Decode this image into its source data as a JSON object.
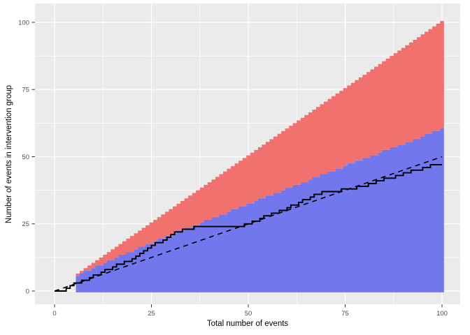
{
  "figure": {
    "background": "#ffffff",
    "panel_background": "#ebebeb",
    "grid_major_color": "#ffffff",
    "grid_minor_color": "#ffffff",
    "tick_color": "#333333",
    "tick_label_color": "#4d4d4d",
    "axis_title_color": "#000000"
  },
  "chart_data": {
    "type": "area",
    "title": "",
    "xlabel": "Total number of events",
    "ylabel": "Number of events in intervention group",
    "x_range": [
      0,
      100
    ],
    "y_range": [
      0,
      100
    ],
    "x_ticks": [
      0,
      25,
      50,
      75,
      100
    ],
    "y_ticks": [
      0,
      25,
      50,
      75,
      100
    ],
    "x_minor_ticks": [
      12.5,
      37.5,
      62.5,
      87.5
    ],
    "y_minor_ticks": [
      12.5,
      37.5,
      62.5,
      87.5
    ],
    "grid": "on",
    "legend_position": "none",
    "regions": {
      "start_n": 6,
      "stop_region_color": "#f0716e",
      "continue_region_color": "#7277ed",
      "upper_edge_rule": "y equals n (all events in intervention group)",
      "lower_edge_of_blue": 0,
      "upper_boundary_k_from_n6_to_n100": [
        6,
        7,
        8,
        8,
        9,
        10,
        10,
        11,
        12,
        12,
        13,
        14,
        14,
        15,
        15,
        16,
        17,
        17,
        18,
        18,
        19,
        20,
        20,
        21,
        21,
        22,
        23,
        23,
        24,
        24,
        25,
        25,
        26,
        27,
        27,
        28,
        28,
        29,
        29,
        30,
        31,
        31,
        32,
        32,
        33,
        33,
        34,
        35,
        35,
        36,
        36,
        37,
        37,
        38,
        39,
        39,
        40,
        40,
        41,
        41,
        42,
        43,
        43,
        44,
        44,
        45,
        45,
        46,
        46,
        47,
        48,
        48,
        49,
        49,
        50,
        50,
        51,
        51,
        52,
        53,
        53,
        54,
        54,
        55,
        55,
        56,
        56,
        57,
        57,
        58,
        59,
        59,
        60,
        60,
        61
      ]
    },
    "reference_line": {
      "style": "dashed",
      "color": "#000000",
      "from": [
        0,
        0
      ],
      "to": [
        100,
        50
      ]
    },
    "observed_series": {
      "name": "observed-cumulative-events",
      "style": "step",
      "color": "#000000",
      "x_start": 0,
      "y": [
        0,
        0,
        0,
        1,
        2,
        3,
        3,
        4,
        4,
        5,
        6,
        6,
        7,
        8,
        8,
        9,
        10,
        10,
        11,
        11,
        12,
        13,
        14,
        15,
        16,
        17,
        18,
        18,
        19,
        20,
        21,
        22,
        22,
        23,
        23,
        23,
        24,
        24,
        24,
        24,
        24,
        24,
        24,
        24,
        24,
        24,
        24,
        24,
        24,
        25,
        25,
        26,
        26,
        27,
        28,
        28,
        29,
        29,
        30,
        30,
        31,
        32,
        32,
        33,
        34,
        34,
        35,
        36,
        36,
        37,
        37,
        37,
        37,
        37,
        38,
        38,
        38,
        38,
        39,
        39,
        39,
        40,
        40,
        41,
        41,
        42,
        42,
        42,
        43,
        43,
        44,
        44,
        45,
        45,
        45,
        46,
        46,
        47,
        47,
        47,
        47
      ]
    }
  }
}
